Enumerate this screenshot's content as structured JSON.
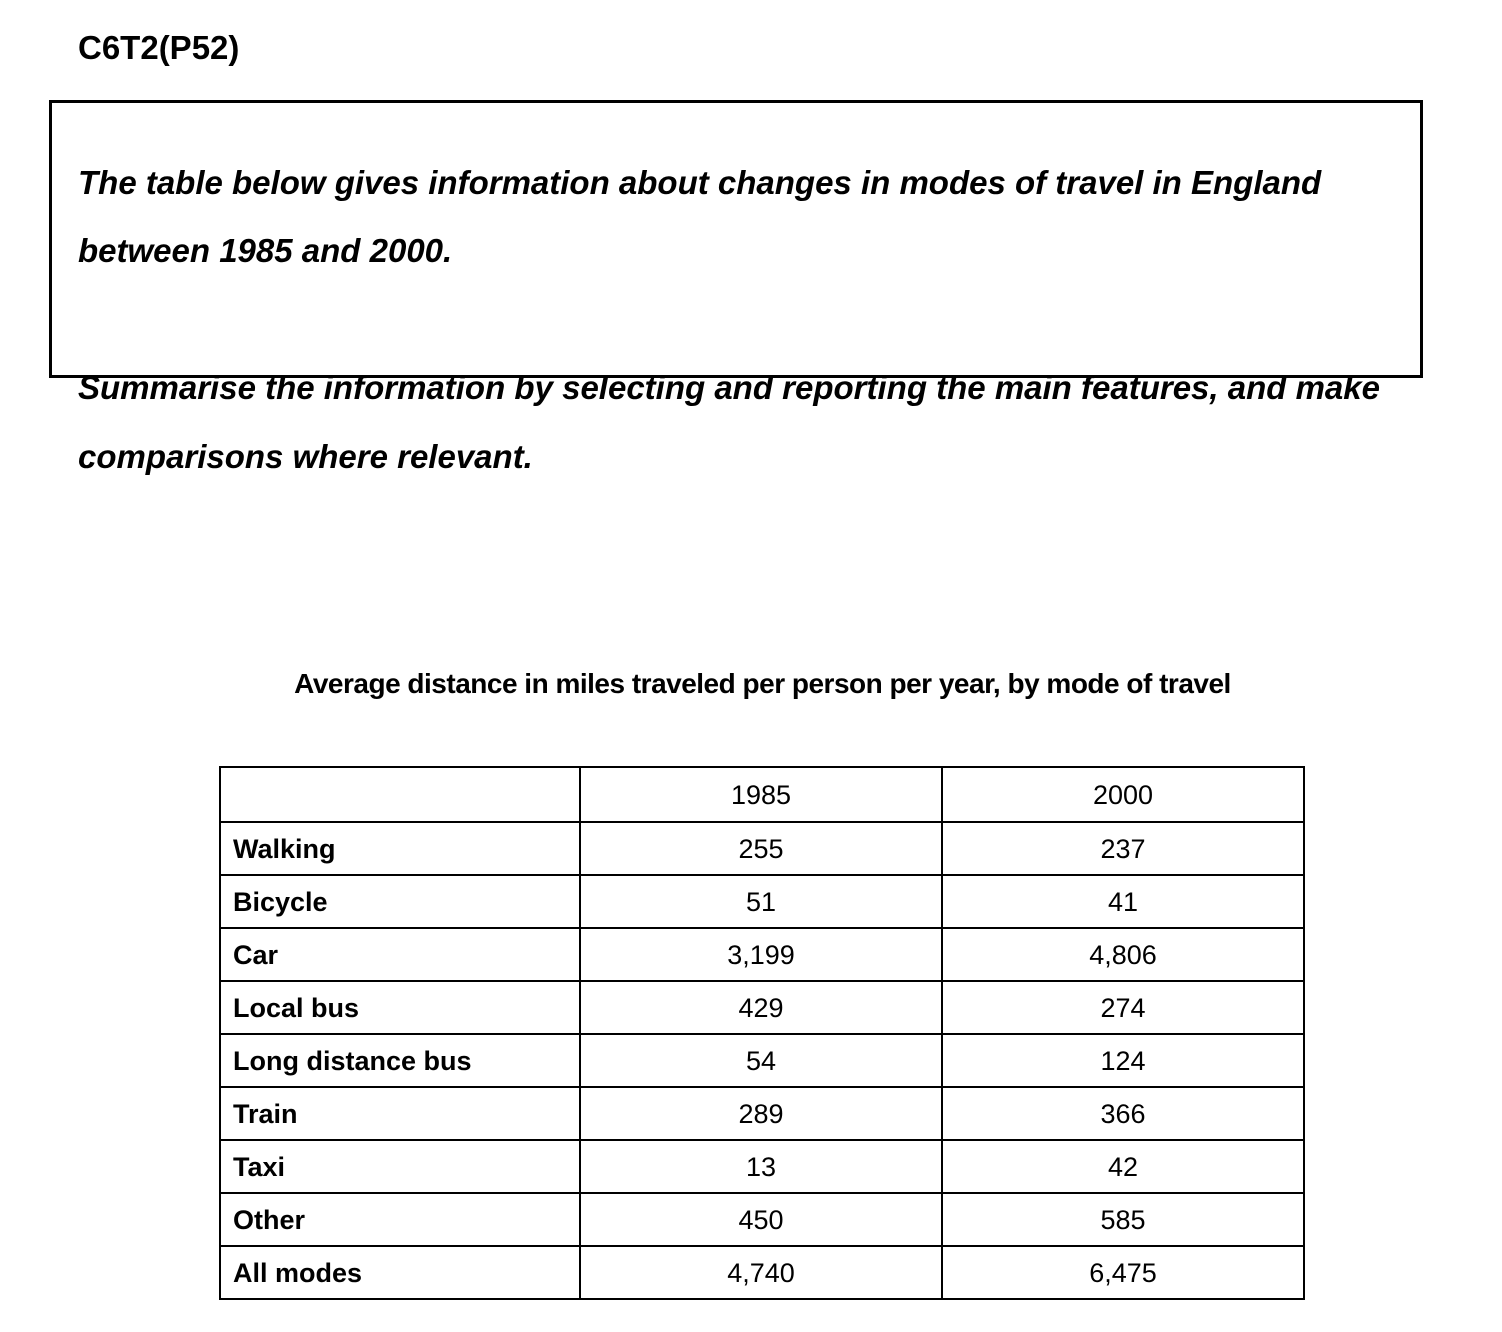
{
  "heading": "C6T2(P52)",
  "prompt": {
    "line1": "The table below gives information about changes in modes of travel in England",
    "line2": "between 1985 and 2000.",
    "line3": "Summarise the information by selecting and reporting the main features, and make",
    "line4": "comparisons where relevant."
  },
  "chart_data": {
    "type": "table",
    "title": "Average distance in miles traveled per person per year, by mode of travel",
    "columns": [
      "",
      "1985",
      "2000"
    ],
    "rows": [
      {
        "mode": "Walking",
        "y1985": "255",
        "y2000": "237"
      },
      {
        "mode": "Bicycle",
        "y1985": "51",
        "y2000": "41"
      },
      {
        "mode": "Car",
        "y1985": "3,199",
        "y2000": "4,806"
      },
      {
        "mode": "Local bus",
        "y1985": "429",
        "y2000": "274"
      },
      {
        "mode": "Long distance bus",
        "y1985": "54",
        "y2000": "124"
      },
      {
        "mode": "Train",
        "y1985": "289",
        "y2000": "366"
      },
      {
        "mode": "Taxi",
        "y1985": "13",
        "y2000": "42"
      },
      {
        "mode": "Other",
        "y1985": "450",
        "y2000": "585"
      },
      {
        "mode": "All modes",
        "y1985": "4,740",
        "y2000": "6,475"
      }
    ]
  }
}
